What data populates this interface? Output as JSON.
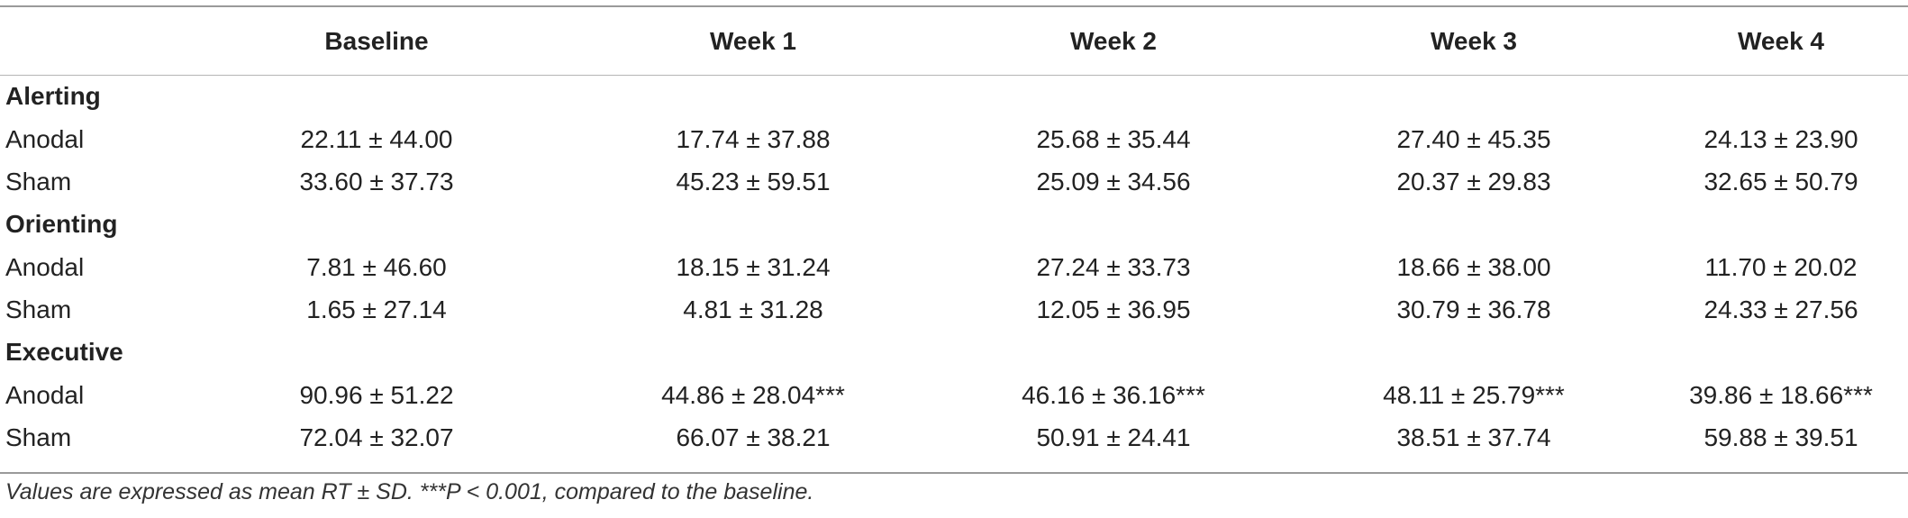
{
  "table": {
    "headers": [
      "",
      "Baseline",
      "Week 1",
      "Week 2",
      "Week 3",
      "Week 4"
    ],
    "groups": [
      {
        "label": "Alerting",
        "rows": [
          {
            "label": "Anodal",
            "values": [
              "22.11 ± 44.00",
              "17.74 ± 37.88",
              "25.68 ± 35.44",
              "27.40 ± 45.35",
              "24.13 ± 23.90"
            ]
          },
          {
            "label": "Sham",
            "values": [
              "33.60 ± 37.73",
              "45.23 ± 59.51",
              "25.09 ± 34.56",
              "20.37 ± 29.83",
              "32.65 ± 50.79"
            ]
          }
        ]
      },
      {
        "label": "Orienting",
        "rows": [
          {
            "label": "Anodal",
            "values": [
              "7.81 ± 46.60",
              "18.15 ± 31.24",
              "27.24 ± 33.73",
              "18.66 ± 38.00",
              "11.70 ± 20.02"
            ]
          },
          {
            "label": "Sham",
            "values": [
              "1.65 ± 27.14",
              "4.81 ± 31.28",
              "12.05 ± 36.95",
              "30.79 ± 36.78",
              "24.33 ± 27.56"
            ]
          }
        ]
      },
      {
        "label": "Executive",
        "rows": [
          {
            "label": "Anodal",
            "values": [
              "90.96 ± 51.22",
              "44.86 ± 28.04***",
              "46.16 ± 36.16***",
              "48.11 ± 25.79***",
              "39.86 ± 18.66***"
            ]
          },
          {
            "label": "Sham",
            "values": [
              "72.04 ± 32.07",
              "66.07 ± 38.21",
              "50.91 ± 24.41",
              "38.51 ± 37.74",
              "59.88 ± 39.51"
            ]
          }
        ]
      }
    ]
  },
  "footnote": "Values are expressed as mean RT ± SD. ***P < 0.001, compared to the baseline."
}
